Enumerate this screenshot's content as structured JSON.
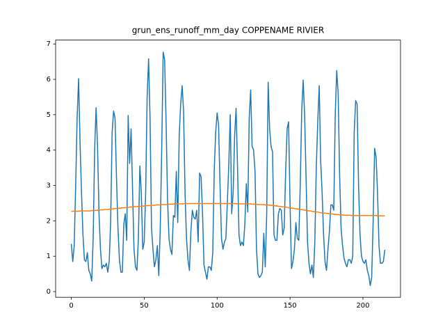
{
  "chart_data": {
    "type": "line",
    "title": "grun_ens_runoff_mm_day COPPENAME RIVIER",
    "x": [
      0,
      1,
      2,
      3,
      4,
      5,
      6,
      7,
      8,
      9,
      10,
      11,
      12,
      13,
      14,
      15,
      16,
      17,
      18,
      19,
      20,
      21,
      22,
      23,
      24,
      25,
      26,
      27,
      28,
      29,
      30,
      31,
      32,
      33,
      34,
      35,
      36,
      37,
      38,
      39,
      40,
      41,
      42,
      43,
      44,
      45,
      46,
      47,
      48,
      49,
      50,
      51,
      52,
      53,
      54,
      55,
      56,
      57,
      58,
      59,
      60,
      61,
      62,
      63,
      64,
      65,
      66,
      67,
      68,
      69,
      70,
      71,
      72,
      73,
      74,
      75,
      76,
      77,
      78,
      79,
      80,
      81,
      82,
      83,
      84,
      85,
      86,
      87,
      88,
      89,
      90,
      91,
      92,
      93,
      94,
      95,
      96,
      97,
      98,
      99,
      100,
      101,
      102,
      103,
      104,
      105,
      106,
      107,
      108,
      109,
      110,
      111,
      112,
      113,
      114,
      115,
      116,
      117,
      118,
      119,
      120,
      121,
      122,
      123,
      124,
      125,
      126,
      127,
      128,
      129,
      130,
      131,
      132,
      133,
      134,
      135,
      136,
      137,
      138,
      139,
      140,
      141,
      142,
      143,
      144,
      145,
      146,
      147,
      148,
      149,
      150,
      151,
      152,
      153,
      154,
      155,
      156,
      157,
      158,
      159,
      160,
      161,
      162,
      163,
      164,
      165,
      166,
      167,
      168,
      169,
      170,
      171,
      172,
      173,
      174,
      175,
      176,
      177,
      178,
      179,
      180,
      181,
      182,
      183,
      184,
      185,
      186,
      187,
      188,
      189,
      190,
      191,
      192,
      193,
      194,
      195,
      196,
      197,
      198,
      199,
      200,
      201,
      202,
      203,
      204,
      205,
      206,
      207,
      208,
      209,
      210,
      211,
      212,
      213,
      214,
      215
    ],
    "series": [
      {
        "color": "#1f77b4",
        "values": [
          1.35,
          0.85,
          1.3,
          3.0,
          4.9,
          6.02,
          4.2,
          2.8,
          1.6,
          0.9,
          0.85,
          1.1,
          0.6,
          0.5,
          0.3,
          1.5,
          4.0,
          5.2,
          4.1,
          2.2,
          1.2,
          0.65,
          0.75,
          0.7,
          0.8,
          0.55,
          0.85,
          2.0,
          4.5,
          5.1,
          4.9,
          3.2,
          1.8,
          0.9,
          0.55,
          0.55,
          1.9,
          2.2,
          1.45,
          4.98,
          3.62,
          4.6,
          2.9,
          1.2,
          0.7,
          0.6,
          1.5,
          3.55,
          2.8,
          1.2,
          1.4,
          2.8,
          5.5,
          6.58,
          4.9,
          1.8,
          1.2,
          0.7,
          0.9,
          1.3,
          0.45,
          1.8,
          4.0,
          6.77,
          6.55,
          4.8,
          2.6,
          1.5,
          1.2,
          1.05,
          2.15,
          2.1,
          3.4,
          1.95,
          4.4,
          5.3,
          5.82,
          5.1,
          2.8,
          1.5,
          0.9,
          0.6,
          1.7,
          2.3,
          2.1,
          2.05,
          2.3,
          1.4,
          3.35,
          3.25,
          2.2,
          0.75,
          0.55,
          0.35,
          0.7,
          0.7,
          0.6,
          1.1,
          3.4,
          4.5,
          5.05,
          4.7,
          3.0,
          1.5,
          1.2,
          1.4,
          1.5,
          2.5,
          3.6,
          5.0,
          2.2,
          2.8,
          4.4,
          5.18,
          3.5,
          1.6,
          1.3,
          1.4,
          1.3,
          1.9,
          3.05,
          2.25,
          4.9,
          5.7,
          4.1,
          4.0,
          3.4,
          1.2,
          0.5,
          0.4,
          0.45,
          0.55,
          1.65,
          0.7,
          2.2,
          5.92,
          4.6,
          4.1,
          3.95,
          1.6,
          1.45,
          1.45,
          2.2,
          2.35,
          2.3,
          1.6,
          1.8,
          3.4,
          4.6,
          4.8,
          2.5,
          0.65,
          0.85,
          1.2,
          1.95,
          1.5,
          1.45,
          3.0,
          5.1,
          5.98,
          5.0,
          3.2,
          1.4,
          0.8,
          0.5,
          0.75,
          0.4,
          1.4,
          3.5,
          4.8,
          5.82,
          3.7,
          2.8,
          1.6,
          0.85,
          0.6,
          1.2,
          1.7,
          2.45,
          2.45,
          2.3,
          5.0,
          6.25,
          5.6,
          3.3,
          1.8,
          1.3,
          0.95,
          0.8,
          0.7,
          0.9,
          0.9,
          0.8,
          1.0,
          4.5,
          5.4,
          5.3,
          3.0,
          1.6,
          1.0,
          0.85,
          0.8,
          0.9,
          0.6,
          0.45,
          0.17,
          0.4,
          2.0,
          4.05,
          3.8,
          2.8,
          1.3,
          0.8,
          0.8,
          0.85,
          1.18
        ]
      },
      {
        "color": "#ff7f0e",
        "values": [
          2.27,
          2.27,
          2.27,
          2.27,
          2.27,
          2.27,
          2.28,
          2.28,
          2.28,
          2.28,
          2.28,
          2.28,
          2.28,
          2.28,
          2.29,
          2.29,
          2.29,
          2.3,
          2.3,
          2.3,
          2.31,
          2.31,
          2.31,
          2.32,
          2.32,
          2.32,
          2.33,
          2.33,
          2.34,
          2.34,
          2.35,
          2.35,
          2.35,
          2.36,
          2.36,
          2.37,
          2.37,
          2.37,
          2.38,
          2.38,
          2.39,
          2.39,
          2.39,
          2.4,
          2.4,
          2.4,
          2.41,
          2.41,
          2.41,
          2.42,
          2.42,
          2.42,
          2.43,
          2.43,
          2.43,
          2.44,
          2.44,
          2.44,
          2.45,
          2.45,
          2.45,
          2.45,
          2.46,
          2.46,
          2.46,
          2.46,
          2.47,
          2.47,
          2.47,
          2.47,
          2.47,
          2.48,
          2.48,
          2.48,
          2.48,
          2.48,
          2.48,
          2.48,
          2.49,
          2.49,
          2.49,
          2.49,
          2.49,
          2.49,
          2.49,
          2.49,
          2.49,
          2.49,
          2.49,
          2.49,
          2.49,
          2.49,
          2.49,
          2.49,
          2.49,
          2.49,
          2.49,
          2.49,
          2.49,
          2.49,
          2.49,
          2.49,
          2.49,
          2.49,
          2.49,
          2.49,
          2.49,
          2.49,
          2.49,
          2.49,
          2.49,
          2.49,
          2.49,
          2.49,
          2.48,
          2.48,
          2.48,
          2.48,
          2.48,
          2.48,
          2.48,
          2.48,
          2.48,
          2.48,
          2.47,
          2.47,
          2.47,
          2.47,
          2.46,
          2.46,
          2.46,
          2.46,
          2.46,
          2.45,
          2.45,
          2.45,
          2.44,
          2.44,
          2.43,
          2.43,
          2.42,
          2.42,
          2.41,
          2.41,
          2.4,
          2.4,
          2.39,
          2.39,
          2.38,
          2.37,
          2.37,
          2.36,
          2.36,
          2.35,
          2.34,
          2.34,
          2.33,
          2.32,
          2.32,
          2.31,
          2.3,
          2.3,
          2.29,
          2.28,
          2.28,
          2.27,
          2.26,
          2.26,
          2.25,
          2.25,
          2.24,
          2.23,
          2.23,
          2.22,
          2.22,
          2.21,
          2.21,
          2.2,
          2.2,
          2.19,
          2.19,
          2.18,
          2.18,
          2.18,
          2.17,
          2.17,
          2.17,
          2.16,
          2.16,
          2.16,
          2.16,
          2.16,
          2.15,
          2.15,
          2.15,
          2.15,
          2.15,
          2.15,
          2.15,
          2.15,
          2.15,
          2.15,
          2.15,
          2.15,
          2.15,
          2.15,
          2.15,
          2.15,
          2.15,
          2.15,
          2.14,
          2.14,
          2.14,
          2.14,
          2.14,
          2.14
        ]
      }
    ],
    "xlim": [
      -10.75,
      225.75
    ],
    "xticks": [
      0,
      50,
      100,
      150,
      200
    ],
    "ylim": [
      -0.16,
      7.11
    ],
    "yticks": [
      0,
      1,
      2,
      3,
      4,
      5,
      6,
      7
    ]
  }
}
